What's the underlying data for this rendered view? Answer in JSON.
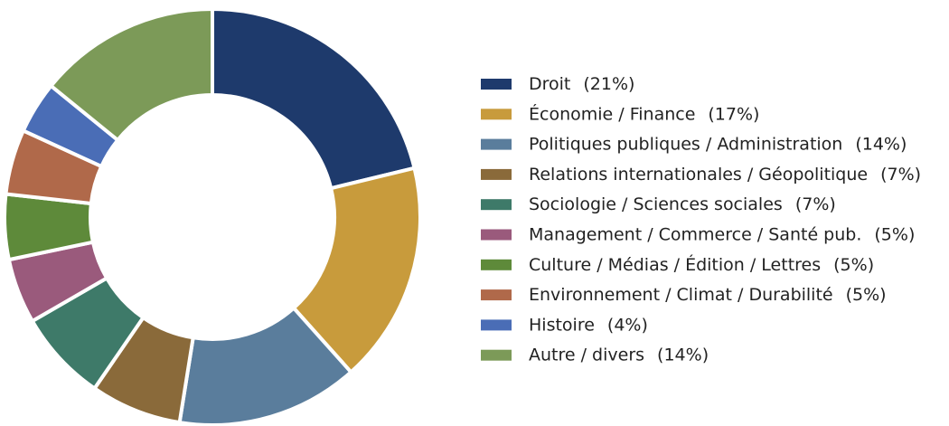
{
  "chart_data": {
    "type": "donut",
    "categories": [
      "Droit",
      "Économie / Finance",
      "Politiques publiques / Administration",
      "Relations internationales / Géopolitique",
      "Sociologie / Sciences sociales",
      "Management / Commerce / Santé pub.",
      "Culture / Médias / Édition / Lettres",
      "Environnement / Climat / Durabilité",
      "Histoire",
      "Autre / divers"
    ],
    "values": [
      21,
      17,
      14,
      7,
      7,
      5,
      5,
      5,
      4,
      14
    ],
    "value_labels": [
      "(21%)",
      "(17%)",
      "(14%)",
      "(7%)",
      "(7%)",
      "(5%)",
      "(5%)",
      "(5%)",
      "(4%)",
      "(14%)"
    ],
    "colors": [
      "#1e3a6c",
      "#c89b3c",
      "#5a7d9c",
      "#8a6a3a",
      "#3e7a69",
      "#9a5a7c",
      "#5e8a3a",
      "#b0694a",
      "#4a6db6",
      "#7c9a58"
    ],
    "legend": "right"
  }
}
